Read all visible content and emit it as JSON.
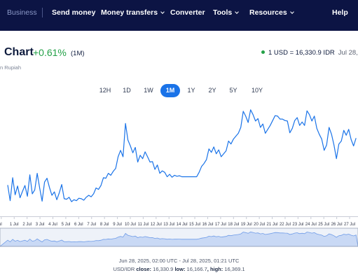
{
  "nav": {
    "brand": "Business",
    "items": [
      {
        "label": "Send money",
        "dropdown": false
      },
      {
        "label": "Money transfers",
        "dropdown": true
      },
      {
        "label": "Converter",
        "dropdown": false
      },
      {
        "label": "Tools",
        "dropdown": true
      },
      {
        "label": "Resources",
        "dropdown": true
      },
      {
        "label": "Help",
        "dropdown": false
      }
    ]
  },
  "header": {
    "title": "Chart",
    "change": "+0.61%",
    "change_period": "(1M)",
    "subtitle": "n Rupiah",
    "rate": "1 USD = 16,330.9 IDR",
    "rate_date": "Jul 28,"
  },
  "periods": {
    "tabs": [
      "12H",
      "1D",
      "1W",
      "1M",
      "1Y",
      "2Y",
      "5Y",
      "10Y"
    ],
    "active": "1M"
  },
  "colors": {
    "nav_bg": "#0c1444",
    "line": "#1a73e8",
    "positive": "#24a148",
    "active_tab": "#1a73e8",
    "brush_fill": "#c9d9f5"
  },
  "chart_data": {
    "type": "line",
    "series": [
      {
        "values": [
          16204,
          16172,
          16219,
          16184,
          16202,
          16178,
          16191,
          16203,
          16181,
          16225,
          16186,
          16194,
          16228,
          16198,
          16171,
          16210,
          16218,
          16199,
          16183,
          16190,
          16174,
          16188,
          16205,
          16176,
          16175,
          16179,
          16170,
          16174,
          16172,
          16177,
          16176,
          16173,
          16179,
          16183,
          16180,
          16186,
          16198,
          16195,
          16203,
          16219,
          16218,
          16228,
          16224,
          16232,
          16238,
          16262,
          16275,
          16262,
          16330,
          16296,
          16284,
          16270,
          16281,
          16251,
          16265,
          16258,
          16272,
          16262,
          16251,
          16252,
          16236,
          16245,
          16228,
          16233,
          16230,
          16221,
          16226,
          16220,
          16224,
          16222,
          16223,
          16221,
          16221,
          16221,
          16221,
          16221,
          16221,
          16221,
          16230,
          16242,
          16248,
          16256,
          16278,
          16271,
          16282,
          16268,
          16276,
          16262,
          16268,
          16274,
          16294,
          16288,
          16298,
          16304,
          16310,
          16322,
          16355,
          16345,
          16332,
          16358,
          16348,
          16335,
          16340,
          16322,
          16329,
          16310,
          16318,
          16326,
          16336,
          16346,
          16345,
          16339,
          16339,
          16336,
          16335,
          16311,
          16320,
          16336,
          16342,
          16326,
          16333,
          16326,
          16356,
          16348,
          16335,
          16345,
          16320,
          16308,
          16298,
          16275,
          16286,
          16322,
          16308,
          16286,
          16258,
          16288,
          16294,
          16316,
          16306,
          16318,
          16297,
          16284,
          16300
        ],
        "x_start": "Jul 1",
        "x_end": "Jul 28",
        "x_domain_start": 0.4,
        "x_domain_end": 28.15
      }
    ],
    "x_tick_labels": [
      "Jul",
      "1 Jul",
      "2 Jul",
      "3 Jul",
      "4 Jul",
      "5 Jul",
      "6 Jul",
      "7 Jul",
      "8 Jul",
      "9 Jul",
      "10 Jul",
      "11 Jul",
      "12 Jul",
      "13 Jul",
      "14 Jul",
      "15 Jul",
      "16 Jul",
      "17 Jul",
      "18 Jul",
      "19 Jul",
      "20 Jul",
      "21 Jul",
      "22 Jul",
      "23 Jul",
      "24 Jul",
      "25 Jul",
      "26 Jul",
      "27 Jul",
      "28"
    ],
    "ylim": [
      16140,
      16375
    ],
    "grid": false,
    "range_label": "Jun 28, 2025, 02:00 UTC - Jul 28, 2025, 01:21 UTC",
    "stats": {
      "pair": "USD/IDR",
      "close_label": "close:",
      "close": "16,330.9",
      "low_label": "low:",
      "low": "16,166.7",
      "high_label": "high:",
      "high": "16,369.1"
    }
  }
}
